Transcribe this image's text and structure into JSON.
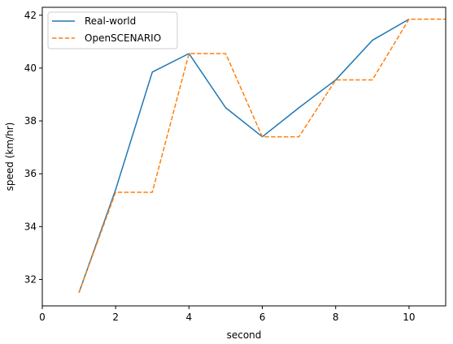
{
  "chart_data": {
    "type": "line",
    "title": "",
    "xlabel": "second",
    "ylabel": "speed (km/hr)",
    "xlim": [
      0,
      11
    ],
    "ylim": [
      31,
      42.3
    ],
    "xticks": [
      0,
      2,
      4,
      6,
      8,
      10
    ],
    "yticks": [
      32,
      34,
      36,
      38,
      40,
      42
    ],
    "grid": false,
    "legend_position": "top-left",
    "series": [
      {
        "name": "Real-world",
        "color": "#1f77b4",
        "style": "solid",
        "x": [
          1,
          2,
          3,
          4,
          5,
          6,
          7,
          8,
          9,
          10
        ],
        "y": [
          31.5,
          35.4,
          39.85,
          40.55,
          38.5,
          37.4,
          38.5,
          39.55,
          41.05,
          41.85
        ]
      },
      {
        "name": "OpenSCENARIO",
        "color": "#ff7f0e",
        "style": "dashed",
        "x": [
          1,
          2,
          3,
          4,
          5,
          6,
          7,
          8,
          9,
          10,
          11
        ],
        "y": [
          31.5,
          35.3,
          35.3,
          40.55,
          40.55,
          37.4,
          37.4,
          39.55,
          39.55,
          41.85,
          41.85
        ]
      }
    ]
  }
}
